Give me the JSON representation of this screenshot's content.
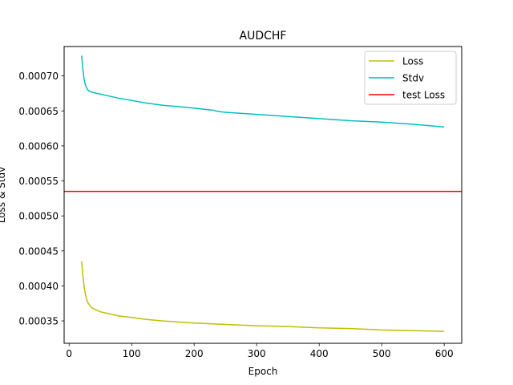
{
  "chart_data": {
    "type": "line",
    "title": "AUDCHF",
    "xlabel": "Epoch",
    "ylabel": "Loss & Stdv",
    "xlim": [
      -8,
      628
    ],
    "ylim": [
      0.000318,
      0.000742
    ],
    "xticks": [
      0,
      100,
      200,
      300,
      400,
      500,
      600
    ],
    "yticks": [
      0.00035,
      0.0004,
      0.00045,
      0.0005,
      0.00055,
      0.0006,
      0.00065,
      0.0007
    ],
    "ytick_labels": [
      "0.00035",
      "0.00040",
      "0.00045",
      "0.00050",
      "0.00055",
      "0.00060",
      "0.00065",
      "0.00070"
    ],
    "grid": false,
    "legend_position": "top-right",
    "series": [
      {
        "name": "Loss",
        "color": "#bfbf00",
        "x": [
          20,
          22,
          24,
          26,
          28,
          30,
          33,
          36,
          40,
          45,
          50,
          60,
          70,
          80,
          100,
          125,
          150,
          200,
          250,
          300,
          350,
          400,
          450,
          500,
          550,
          600
        ],
        "y": [
          0.000435,
          0.000415,
          0.000399,
          0.000388,
          0.000381,
          0.000376,
          0.000372,
          0.000369,
          0.000367,
          0.000365,
          0.000363,
          0.000361,
          0.000359,
          0.000357,
          0.000355,
          0.000352,
          0.00035,
          0.000347,
          0.000345,
          0.000343,
          0.000342,
          0.00034,
          0.000339,
          0.000337,
          0.000336,
          0.000335
        ]
      },
      {
        "name": "Stdv",
        "color": "#00bfbf",
        "x": [
          20,
          22,
          24,
          26,
          28,
          30,
          33,
          36,
          40,
          45,
          50,
          60,
          70,
          80,
          100,
          125,
          150,
          200,
          230,
          240,
          250,
          300,
          350,
          400,
          450,
          500,
          550,
          600
        ],
        "y": [
          0.000729,
          0.000709,
          0.000695,
          0.000687,
          0.000683,
          0.00068,
          0.000678,
          0.000677,
          0.000676,
          0.000675,
          0.000674,
          0.000672,
          0.00067,
          0.000668,
          0.000665,
          0.000661,
          0.000658,
          0.000654,
          0.000651,
          0.000649,
          0.000648,
          0.000645,
          0.000642,
          0.000639,
          0.000636,
          0.000634,
          0.000631,
          0.000627
        ]
      },
      {
        "name": "test Loss",
        "color": "#ff0000",
        "type": "hline",
        "y": 0.000535
      }
    ]
  }
}
